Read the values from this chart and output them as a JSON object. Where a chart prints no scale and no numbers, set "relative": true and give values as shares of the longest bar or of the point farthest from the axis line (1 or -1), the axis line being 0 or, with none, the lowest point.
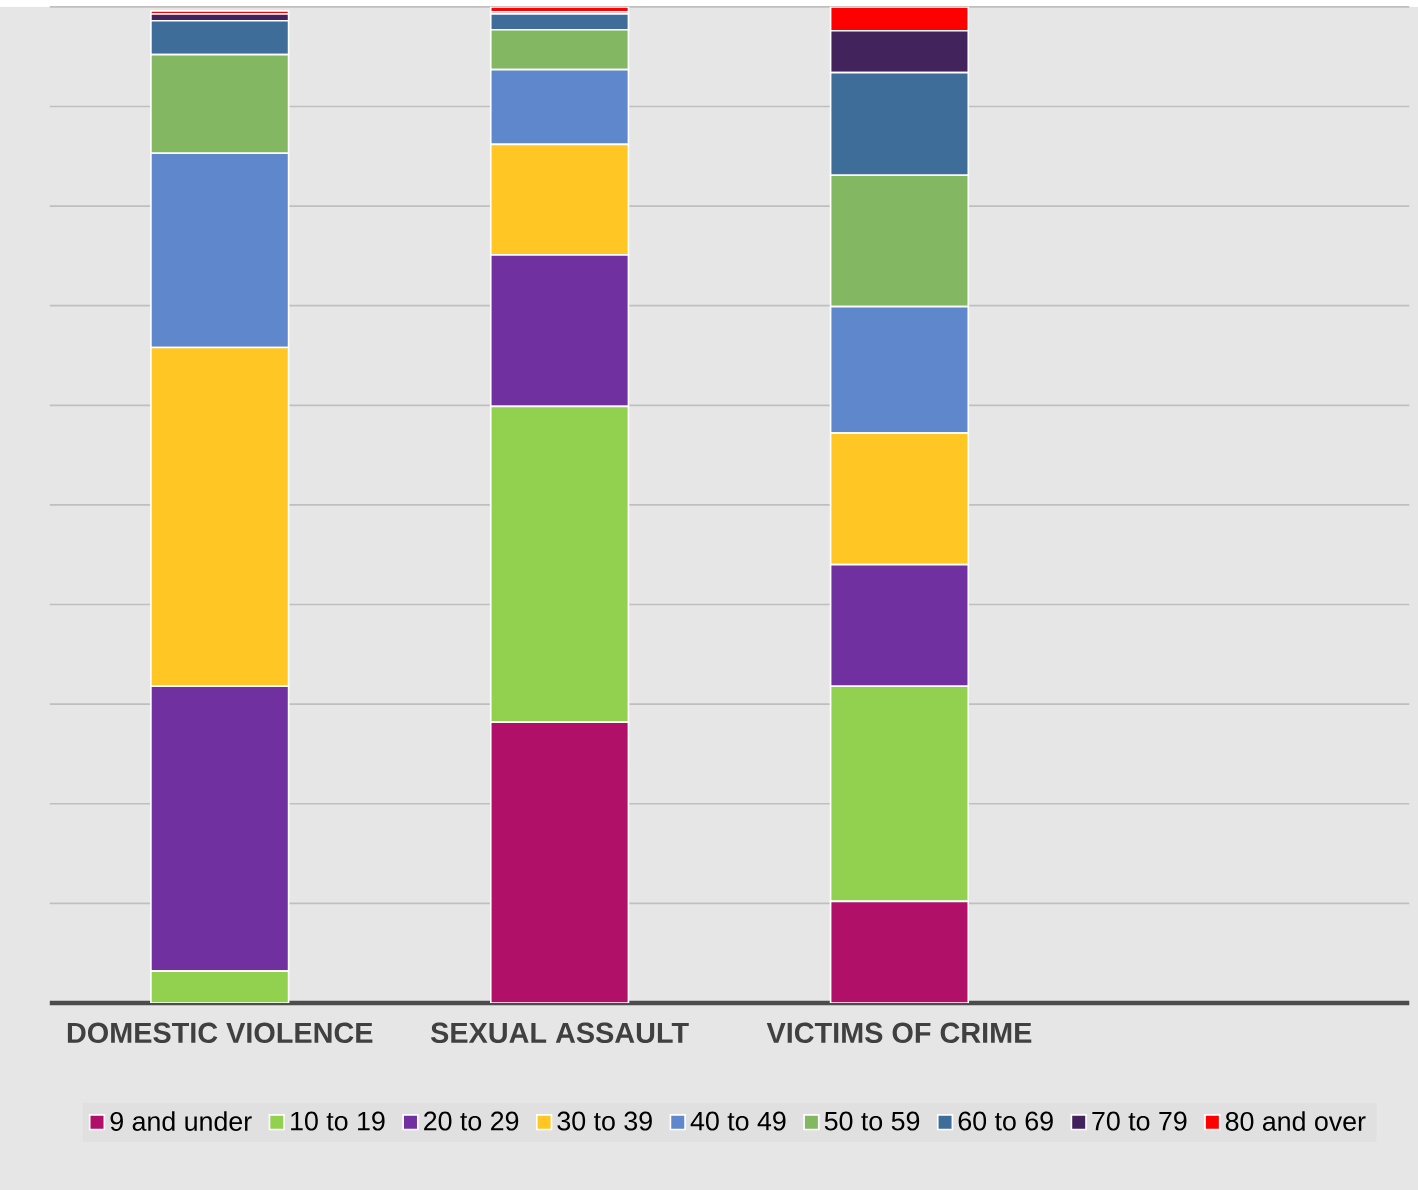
{
  "chart_data": {
    "type": "bar",
    "stacked": true,
    "relative": true,
    "grid": "y",
    "legend": "bottom",
    "categories": [
      "DOMESTIC VIOLENCE",
      "SEXUAL ASSAULT",
      "VICTIMS OF CRIME",
      null
    ],
    "series": [
      {
        "name": "9 and under",
        "color": "#b01068",
        "values": [
          null,
          0.282,
          0.102,
          null
        ]
      },
      {
        "name": "10 to 19",
        "color": "#92d050",
        "values": [
          0.032,
          0.317,
          0.216,
          null
        ]
      },
      {
        "name": "20 to 29",
        "color": "#7030a0",
        "values": [
          0.286,
          0.152,
          0.122,
          null
        ]
      },
      {
        "name": "30 to 39",
        "color": "#ffc624",
        "values": [
          0.34,
          0.111,
          0.132,
          null
        ]
      },
      {
        "name": "40 to 49",
        "color": "#5f87cc",
        "values": [
          0.195,
          0.075,
          0.127,
          null
        ]
      },
      {
        "name": "50 to 59",
        "color": "#84b762",
        "values": [
          0.099,
          0.04,
          0.132,
          null
        ]
      },
      {
        "name": "60 to 69",
        "color": "#3d6d98",
        "values": [
          0.034,
          0.016,
          0.103,
          null
        ]
      },
      {
        "name": "70 to 79",
        "color": "#43235b",
        "values": [
          0.007,
          0.002,
          0.042,
          null
        ]
      },
      {
        "name": "80 and over",
        "color": "#ff0000",
        "values": [
          0.003,
          0.005,
          0.024,
          null
        ]
      }
    ]
  }
}
